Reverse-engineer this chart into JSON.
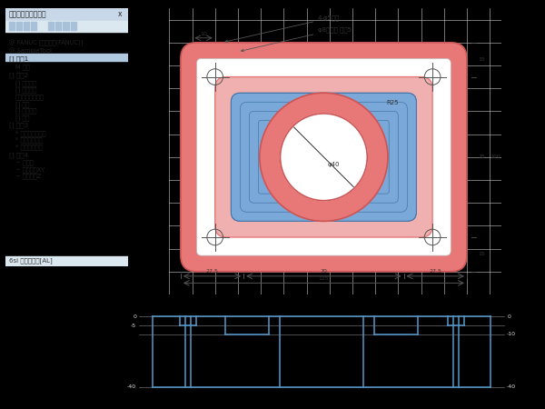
{
  "bg_color": "#000000",
  "panel_bg": "#f0f0f0",
  "panel_title": "ミルプロセスツリー",
  "panel_footer": "6si アルミ合金[AL]",
  "top_view_bg": "#ffffff",
  "outer_rect_color": "#e87878",
  "pink_pocket_color": "#f0b0b0",
  "blue_pocket_color": "#7aa8d8",
  "ring_outer_color": "#e87878",
  "ring_inner_color": "#ffffff",
  "crosshair_color": "#555555",
  "profile_line_color": "#5599cc",
  "grid_color": "#cccccc",
  "annotation_top": "4-φ5貫通",
  "annotation_sub": "φ8ザグリ 深さ5",
  "annotation_r25": "R25",
  "annotation_phi40": "φ40",
  "toolpath_rounding_sizes": [
    4,
    3,
    2,
    1,
    1
  ]
}
